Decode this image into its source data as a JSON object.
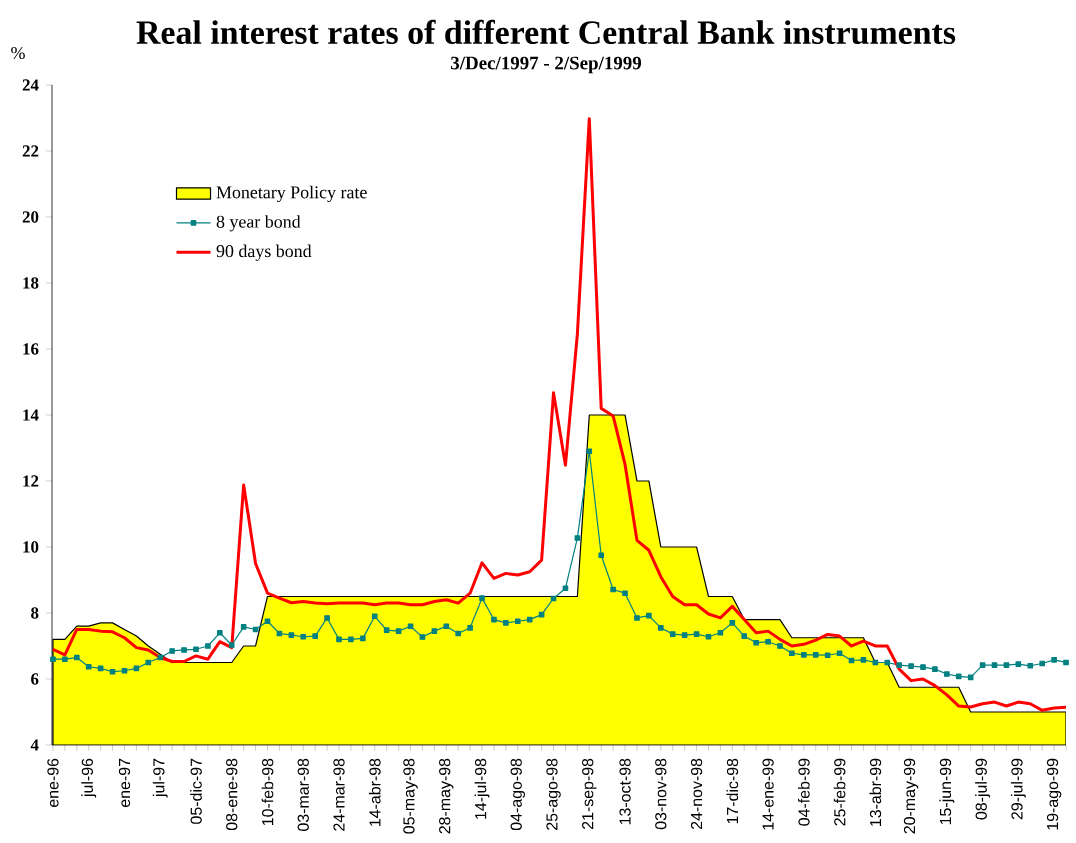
{
  "chart_data": {
    "type": "line",
    "title": "Real interest rates of different Central Bank instruments",
    "subtitle": "3/Dec/1997 - 2/Sep/1999",
    "ylabel": "%",
    "categories": [
      "ene-96",
      null,
      null,
      "jul-96",
      null,
      null,
      "ene-97",
      null,
      null,
      "jul-97",
      null,
      null,
      "05-dic-97",
      null,
      null,
      "08-ene-98",
      null,
      null,
      "10-feb-98",
      null,
      null,
      "03-mar-98",
      null,
      null,
      "24-mar-98",
      null,
      null,
      "14-abr-98",
      null,
      null,
      "05-may-98",
      null,
      null,
      "28-may-98",
      null,
      null,
      "14-jul-98",
      null,
      null,
      "04-ago-98",
      null,
      null,
      "25-ago-98",
      null,
      null,
      "21-sep-98",
      null,
      null,
      "13-oct-98",
      null,
      null,
      "03-nov-98",
      null,
      null,
      "24-nov-98",
      null,
      null,
      "17-dic-98",
      null,
      null,
      "14-ene-99",
      null,
      null,
      "04-feb-99",
      null,
      null,
      "25-feb-99",
      null,
      null,
      "13-abr-99",
      null,
      null,
      "20-may-99",
      null,
      null,
      "15-jun-99",
      null,
      null,
      "08-jul-99",
      null,
      null,
      "29-jul-99",
      null,
      null,
      "19-ago-99",
      null
    ],
    "series": [
      {
        "name": "Monetary Policy rate",
        "type": "area",
        "color": "#ffff00",
        "values": [
          7.2,
          7.2,
          7.6,
          7.6,
          7.7,
          7.7,
          7.5,
          7.3,
          7.0,
          6.75,
          6.5,
          6.5,
          6.5,
          6.5,
          6.5,
          6.5,
          7.0,
          7.0,
          8.5,
          8.5,
          8.5,
          8.5,
          8.5,
          8.5,
          8.5,
          8.5,
          8.5,
          8.5,
          8.5,
          8.5,
          8.5,
          8.5,
          8.5,
          8.5,
          8.5,
          8.5,
          8.5,
          8.5,
          8.5,
          8.5,
          8.5,
          8.5,
          8.5,
          8.5,
          8.5,
          14,
          14,
          14,
          14,
          12,
          12,
          10,
          10,
          10,
          10,
          8.5,
          8.5,
          8.5,
          7.8,
          7.8,
          7.8,
          7.8,
          7.25,
          7.25,
          7.25,
          7.25,
          7.25,
          7.25,
          7.25,
          6.5,
          6.5,
          5.75,
          5.75,
          5.75,
          5.75,
          5.75,
          5.75,
          5,
          5,
          5,
          5,
          5,
          5,
          5,
          5,
          5
        ]
      },
      {
        "name": "8 year bond",
        "type": "line",
        "color": "#008080",
        "marker": "square",
        "values": [
          6.6,
          6.6,
          6.65,
          6.37,
          6.32,
          6.22,
          6.25,
          6.32,
          6.5,
          6.65,
          6.85,
          6.88,
          6.9,
          7.0,
          7.4,
          7.03,
          7.58,
          7.5,
          7.75,
          7.38,
          7.33,
          7.28,
          7.3,
          7.85,
          7.2,
          7.2,
          7.23,
          7.9,
          7.48,
          7.45,
          7.6,
          7.27,
          7.45,
          7.6,
          7.38,
          7.55,
          8.45,
          7.8,
          7.7,
          7.75,
          7.8,
          7.95,
          8.44,
          8.75,
          10.27,
          12.9,
          9.75,
          8.71,
          8.6,
          7.85,
          7.92,
          7.55,
          7.36,
          7.33,
          7.36,
          7.28,
          7.4,
          7.7,
          7.3,
          7.1,
          7.13,
          7.0,
          6.78,
          6.73,
          6.73,
          6.72,
          6.78,
          6.56,
          6.58,
          6.5,
          6.5,
          6.42,
          6.39,
          6.36,
          6.3,
          6.15,
          6.08,
          6.05,
          6.42,
          6.42,
          6.42,
          6.45,
          6.4,
          6.47,
          6.58,
          6.5
        ]
      },
      {
        "name": "90 days bond",
        "type": "line",
        "color": "#ff0000",
        "marker": "none",
        "values": [
          6.9,
          6.73,
          7.5,
          7.5,
          7.45,
          7.43,
          7.25,
          6.95,
          6.88,
          6.65,
          6.53,
          6.53,
          6.7,
          6.6,
          7.13,
          6.95,
          11.88,
          9.5,
          8.6,
          8.45,
          8.31,
          8.35,
          8.3,
          8.28,
          8.3,
          8.3,
          8.3,
          8.25,
          8.3,
          8.3,
          8.25,
          8.25,
          8.35,
          8.4,
          8.3,
          8.6,
          9.52,
          9.05,
          9.2,
          9.15,
          9.25,
          9.6,
          14.67,
          12.48,
          16.45,
          22.98,
          14.2,
          13.97,
          12.5,
          10.2,
          9.9,
          9.1,
          8.5,
          8.25,
          8.25,
          7.97,
          7.85,
          8.2,
          7.8,
          7.4,
          7.45,
          7.2,
          7.0,
          7.05,
          7.18,
          7.35,
          7.3,
          7.0,
          7.15,
          7.0,
          7.0,
          6.3,
          5.95,
          6.0,
          5.8,
          5.52,
          5.18,
          5.15,
          5.25,
          5.3,
          5.18,
          5.3,
          5.25,
          5.05,
          5.12,
          5.14
        ]
      }
    ],
    "ylim": [
      4,
      24
    ],
    "yticks": [
      4,
      6,
      8,
      10,
      12,
      14,
      16,
      18,
      20,
      22,
      24
    ],
    "legend": "top left"
  }
}
